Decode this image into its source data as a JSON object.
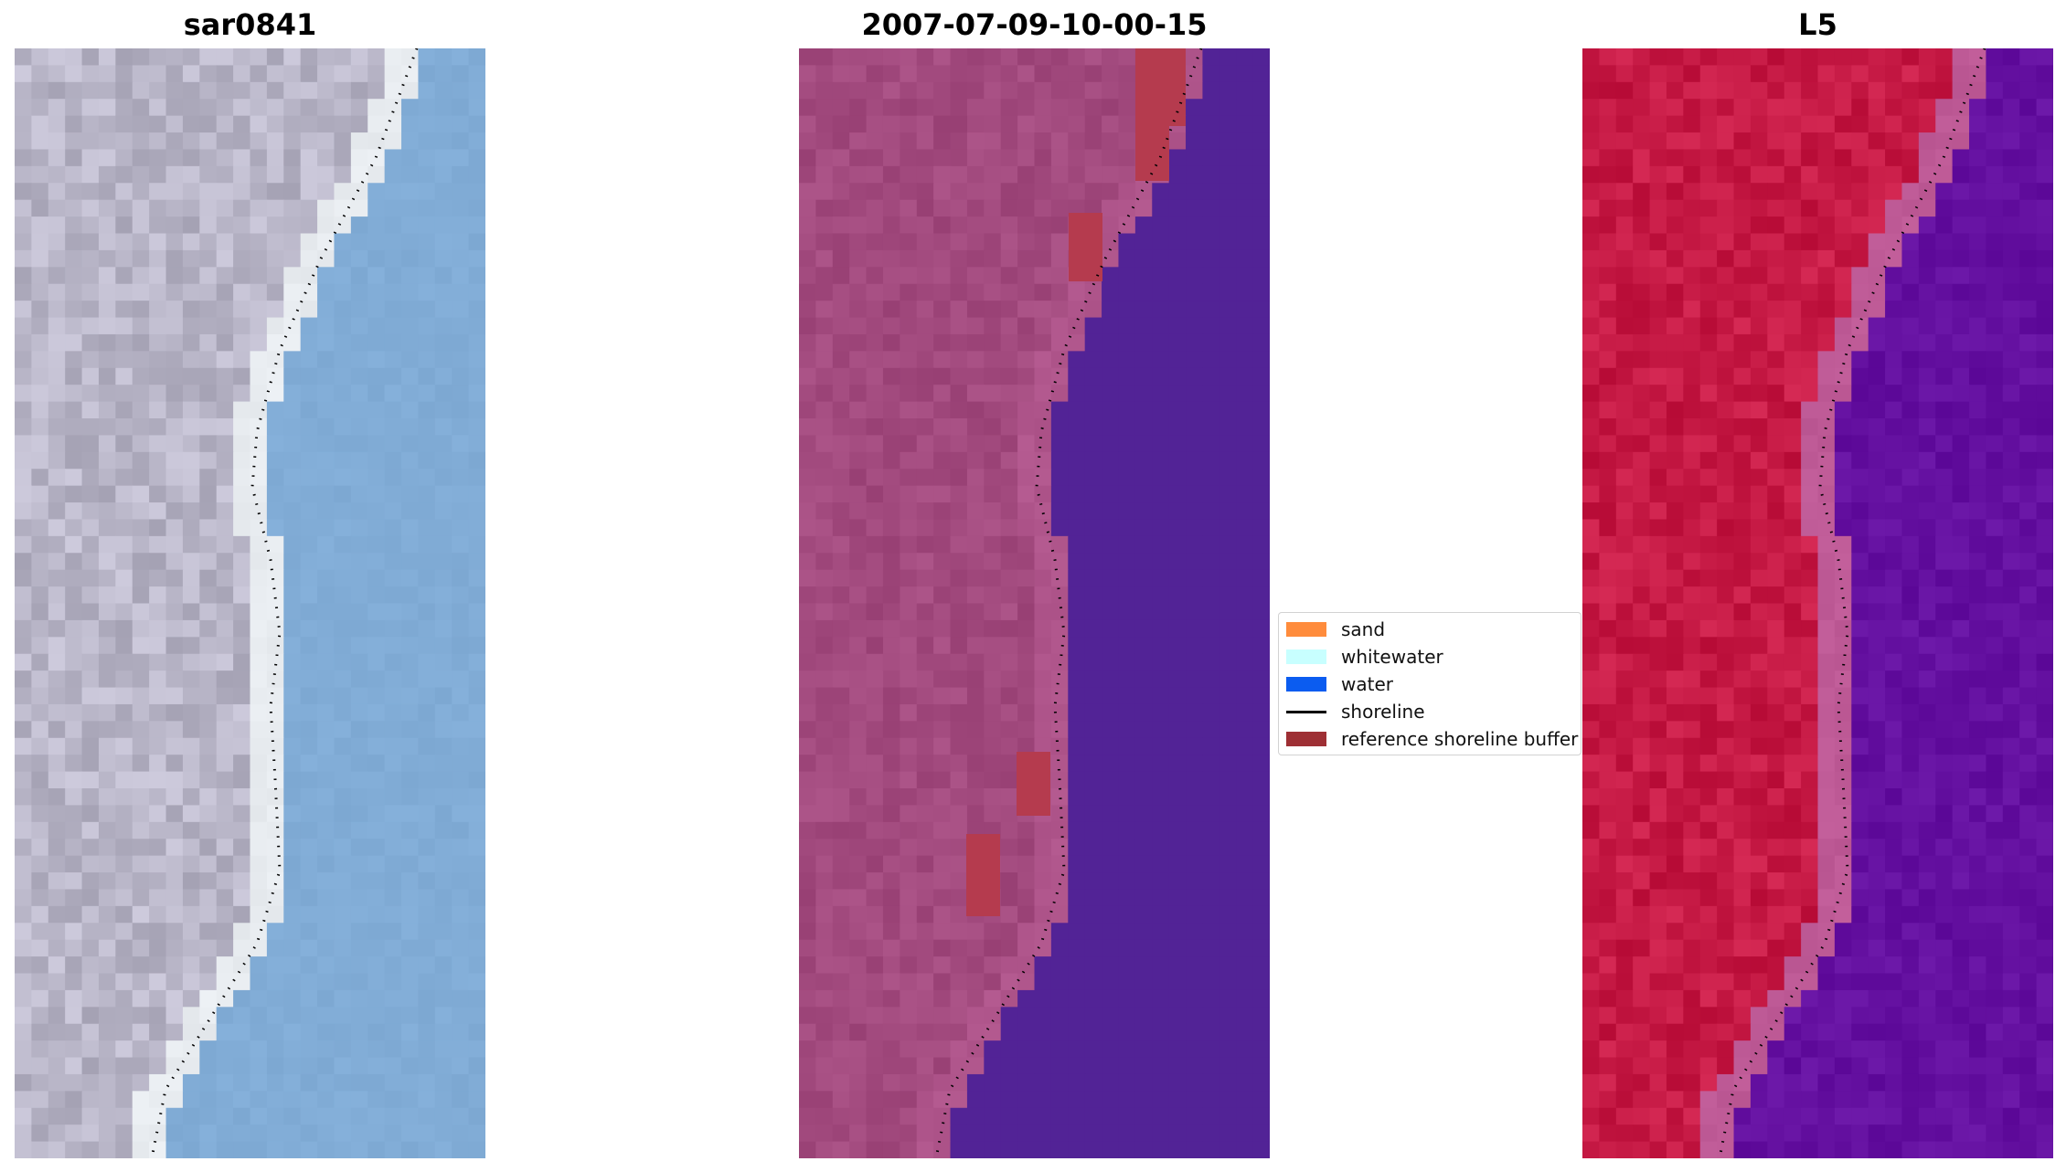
{
  "panels": [
    {
      "title": "sar0841",
      "style": "rgb"
    },
    {
      "title": "2007-07-09-10-00-15",
      "style": "classified"
    },
    {
      "title": "L5",
      "style": "false-color"
    }
  ],
  "legend": {
    "items": [
      {
        "label": "sand",
        "color": "#ff8c3c",
        "kind": "patch"
      },
      {
        "label": "whitewater",
        "color": "#c8ffff",
        "kind": "patch"
      },
      {
        "label": "water",
        "color": "#0b5cf0",
        "kind": "patch"
      },
      {
        "label": "shoreline",
        "color": "#000000",
        "kind": "line"
      },
      {
        "label": "reference shoreline buffer",
        "color": "#9e2f34",
        "kind": "patch"
      }
    ]
  },
  "colors": {
    "rgb_land": "#b9b6c8",
    "rgb_water": "#81acd6",
    "classified_land": "#a24a7e",
    "classified_water": "#522396",
    "classified_buffer": "#b53b4e",
    "falsecolor_land": "#c61a45",
    "falsecolor_water": "#6410a0",
    "shoreline": "#000000"
  }
}
